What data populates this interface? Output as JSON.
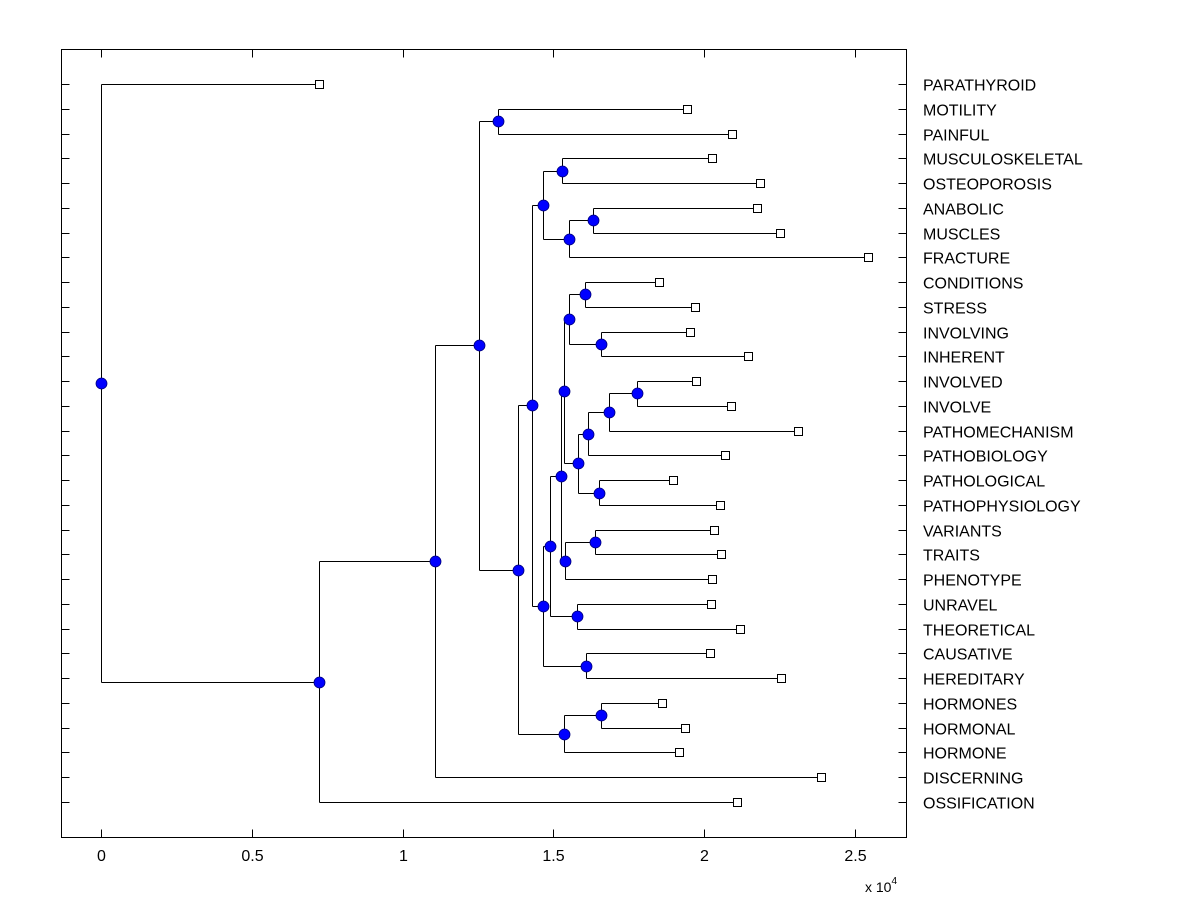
{
  "chart_data": {
    "type": "dendrogram",
    "title": "",
    "xlabel": "",
    "ylabel": "",
    "x_multiplier_label": "x 10",
    "x_multiplier_exponent": "4",
    "xlim": [
      -0.13,
      2.67
    ],
    "xticks": [
      0,
      0.5,
      1,
      1.5,
      2,
      2.5
    ],
    "xtick_labels": [
      "0",
      "0.5",
      "1",
      "1.5",
      "2",
      "2.5"
    ],
    "grid": false,
    "leaf_marker": "square",
    "node_marker": "circle",
    "colors": {
      "node_fill": "#0000ff",
      "leaf_fill": "#ffffff",
      "line": "#000000"
    },
    "leaves": [
      {
        "id": "L0",
        "label": "PARATHYROID",
        "x": 0.722
      },
      {
        "id": "L1",
        "label": "MOTILITY",
        "x": 1.944
      },
      {
        "id": "L2",
        "label": "PAINFUL",
        "x": 2.093
      },
      {
        "id": "L3",
        "label": "MUSCULOSKELETAL",
        "x": 2.026
      },
      {
        "id": "L4",
        "label": "OSTEOPOROSIS",
        "x": 2.185
      },
      {
        "id": "L5",
        "label": "ANABOLIC",
        "x": 2.175
      },
      {
        "id": "L6",
        "label": "MUSCLES",
        "x": 2.252
      },
      {
        "id": "L7",
        "label": "FRACTURE",
        "x": 2.543
      },
      {
        "id": "L8",
        "label": "CONDITIONS",
        "x": 1.851
      },
      {
        "id": "L9",
        "label": "STRESS",
        "x": 1.97
      },
      {
        "id": "L10",
        "label": "INVOLVING",
        "x": 1.954
      },
      {
        "id": "L11",
        "label": "INHERENT",
        "x": 2.146
      },
      {
        "id": "L12",
        "label": "INVOLVED",
        "x": 1.974
      },
      {
        "id": "L13",
        "label": "INVOLVE",
        "x": 2.089
      },
      {
        "id": "L14",
        "label": "PATHOMECHANISM",
        "x": 2.311
      },
      {
        "id": "L15",
        "label": "PATHOBIOLOGY",
        "x": 2.07
      },
      {
        "id": "L16",
        "label": "PATHOLOGICAL",
        "x": 1.897
      },
      {
        "id": "L17",
        "label": "PATHOPHYSIOLOGY",
        "x": 2.053
      },
      {
        "id": "L18",
        "label": "VARIANTS",
        "x": 2.033
      },
      {
        "id": "L19",
        "label": "TRAITS",
        "x": 2.056
      },
      {
        "id": "L20",
        "label": "PHENOTYPE",
        "x": 2.026
      },
      {
        "id": "L21",
        "label": "UNRAVEL",
        "x": 2.023
      },
      {
        "id": "L22",
        "label": "THEORETICAL",
        "x": 2.119
      },
      {
        "id": "L23",
        "label": "CAUSATIVE",
        "x": 2.02
      },
      {
        "id": "L24",
        "label": "HEREDITARY",
        "x": 2.255
      },
      {
        "id": "L25",
        "label": "HORMONES",
        "x": 1.861
      },
      {
        "id": "L26",
        "label": "HORMONAL",
        "x": 1.937
      },
      {
        "id": "L27",
        "label": "HORMONE",
        "x": 1.917
      },
      {
        "id": "L28",
        "label": "DISCERNING",
        "x": 2.387
      },
      {
        "id": "L29",
        "label": "OSSIFICATION",
        "x": 2.109
      }
    ],
    "nodes": [
      {
        "id": "root",
        "x": 0.0,
        "children": [
          "L0",
          "N1"
        ]
      },
      {
        "id": "N1",
        "x": 0.722,
        "children": [
          "N2",
          "L29"
        ]
      },
      {
        "id": "N2",
        "x": 1.109,
        "children": [
          "N3",
          "L28"
        ]
      },
      {
        "id": "N3",
        "x": 1.255,
        "children": [
          "Nmp",
          "N518"
        ]
      },
      {
        "id": "Nmp",
        "x": 1.315,
        "children": [
          "L1",
          "L2"
        ]
      },
      {
        "id": "N518",
        "x": 1.384,
        "children": [
          "N532",
          "Nhor"
        ]
      },
      {
        "id": "N532",
        "x": 1.43,
        "children": [
          "Nmus",
          "N543b"
        ]
      },
      {
        "id": "Nmus",
        "x": 1.467,
        "children": [
          "Nmo",
          "Namf"
        ]
      },
      {
        "id": "Nmo",
        "x": 1.527,
        "children": [
          "L3",
          "L4"
        ]
      },
      {
        "id": "Namf",
        "x": 1.553,
        "children": [
          "Nam",
          "L7"
        ]
      },
      {
        "id": "Nam",
        "x": 1.632,
        "children": [
          "L5",
          "L6"
        ]
      },
      {
        "id": "N543b",
        "x": 1.467,
        "children": [
          "N551",
          "Nch"
        ]
      },
      {
        "id": "N551",
        "x": 1.49,
        "children": [
          "NB",
          "Nut"
        ]
      },
      {
        "id": "NB",
        "x": 1.526,
        "children": [
          "NA",
          "Nvtp"
        ]
      },
      {
        "id": "NA",
        "x": 1.536,
        "children": [
          "N568",
          "N578"
        ]
      },
      {
        "id": "N568",
        "x": 1.55,
        "children": [
          "Ncs",
          "Nii"
        ]
      },
      {
        "id": "Ncs",
        "x": 1.606,
        "children": [
          "L8",
          "L9"
        ]
      },
      {
        "id": "Nii",
        "x": 1.659,
        "children": [
          "L10",
          "L11"
        ]
      },
      {
        "id": "N578",
        "x": 1.583,
        "children": [
          "N588",
          "Npp"
        ]
      },
      {
        "id": "N588",
        "x": 1.616,
        "children": [
          "N609",
          "L15"
        ]
      },
      {
        "id": "N609",
        "x": 1.685,
        "children": [
          "N637",
          "L14"
        ]
      },
      {
        "id": "N637",
        "x": 1.778,
        "children": [
          "L12",
          "L13"
        ]
      },
      {
        "id": "Npp",
        "x": 1.652,
        "children": [
          "L16",
          "L17"
        ]
      },
      {
        "id": "Nvtp",
        "x": 1.54,
        "children": [
          "Nvt",
          "L20"
        ]
      },
      {
        "id": "Nvt",
        "x": 1.639,
        "children": [
          "L18",
          "L19"
        ]
      },
      {
        "id": "Nut",
        "x": 1.579,
        "children": [
          "L21",
          "L22"
        ]
      },
      {
        "id": "Nch",
        "x": 1.609,
        "children": [
          "L23",
          "L24"
        ]
      },
      {
        "id": "Nhor",
        "x": 1.536,
        "children": [
          "Nhh",
          "L27"
        ]
      },
      {
        "id": "Nhh",
        "x": 1.659,
        "children": [
          "L25",
          "L26"
        ]
      }
    ]
  }
}
